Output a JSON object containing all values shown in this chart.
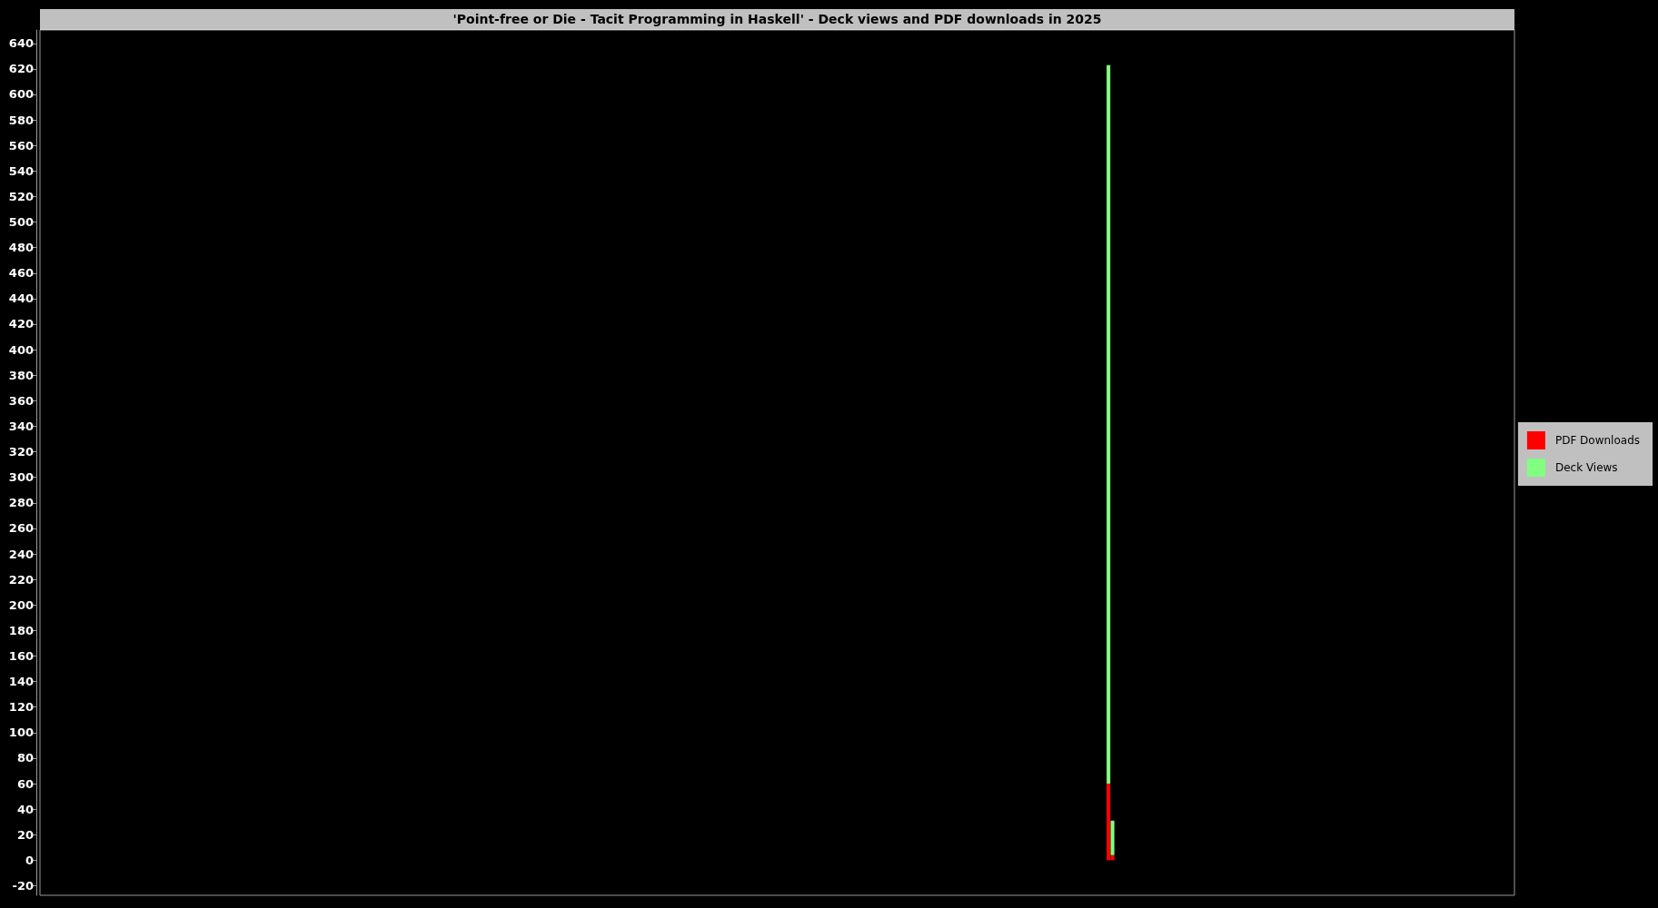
{
  "chart_data": {
    "type": "bar",
    "title": "'Point-free or Die - Tacit Programming in Haskell' - Deck views and PDF downloads in 2025",
    "categories": [
      null,
      null,
      null,
      null,
      null,
      null,
      null,
      null,
      null,
      null,
      null,
      null,
      null,
      null,
      null,
      null,
      null,
      null,
      null,
      null,
      null,
      null,
      null,
      null,
      null,
      null,
      null,
      null,
      null,
      null,
      null,
      null,
      null,
      null,
      null,
      null,
      null,
      null,
      null,
      null,
      null,
      null,
      null,
      null,
      null,
      null,
      null,
      null,
      null,
      null,
      null,
      null,
      null,
      null,
      null,
      null,
      null,
      null,
      null,
      null,
      null,
      null,
      null,
      null,
      null,
      null,
      null,
      null,
      null,
      null,
      null,
      null,
      null,
      null,
      null,
      null,
      null,
      null,
      null,
      null,
      null,
      null,
      null,
      null,
      null,
      null,
      null,
      null,
      null,
      null,
      null,
      null,
      null,
      null,
      null,
      null,
      null,
      null,
      null,
      null,
      null,
      null,
      null,
      null,
      null,
      null,
      null,
      null,
      null,
      null,
      null,
      null,
      null,
      null,
      null,
      null,
      null,
      null,
      null,
      null,
      null,
      null,
      null,
      null,
      null,
      null,
      null,
      null,
      null,
      null,
      null,
      null,
      null,
      null,
      null,
      null,
      null,
      null,
      null,
      null,
      null,
      null,
      null,
      null,
      null,
      null,
      null,
      null,
      null,
      null,
      null,
      null,
      null,
      null,
      null,
      null,
      null,
      null,
      null,
      null,
      null,
      null,
      null,
      null,
      null,
      null,
      null,
      null,
      null,
      null,
      null,
      null,
      null,
      null,
      null,
      null,
      null,
      null,
      null,
      null,
      null,
      null,
      null,
      null,
      null,
      null,
      null,
      null,
      null,
      null,
      null,
      null,
      null,
      null,
      null,
      null,
      null,
      null,
      null,
      null,
      null,
      null,
      null,
      null,
      null,
      null,
      null,
      null,
      null,
      null,
      null,
      null,
      null,
      null,
      null,
      null,
      null,
      null,
      null,
      null,
      null,
      null,
      null,
      null,
      null,
      null,
      null,
      null,
      null,
      null,
      null,
      null,
      null,
      null,
      null,
      null,
      null,
      null,
      null,
      null,
      null,
      null,
      null,
      null,
      null,
      null,
      null,
      null,
      null,
      null,
      null,
      null,
      null,
      null,
      null,
      null,
      null,
      null,
      null,
      null,
      null,
      null,
      null,
      null,
      null,
      null,
      null,
      null,
      null,
      null,
      null,
      null,
      null,
      null,
      null,
      null,
      null,
      null,
      null,
      null,
      null,
      null,
      null,
      null,
      null,
      null,
      null,
      null,
      null,
      null,
      null,
      null,
      null,
      null,
      null,
      null,
      null,
      null,
      null,
      null,
      null,
      null,
      null,
      null,
      null,
      null,
      null,
      null,
      null,
      null,
      null,
      null,
      null,
      null,
      null,
      null,
      null,
      null,
      null,
      null,
      null,
      null,
      null,
      null,
      null,
      null,
      null,
      null,
      null,
      null,
      null,
      null,
      null,
      null,
      null,
      null,
      null,
      null,
      null,
      null,
      null,
      null,
      null,
      null,
      null,
      null,
      null,
      null,
      null,
      null,
      null,
      null,
      null,
      null,
      null,
      null,
      null,
      null,
      null,
      null,
      null,
      null,
      null,
      null,
      null
    ],
    "series": [
      {
        "name": "PDF Downloads",
        "color": "#ff0000",
        "values": [
          null,
          null,
          null,
          null,
          null,
          null,
          null,
          null,
          null,
          null,
          null,
          null,
          null,
          null,
          null,
          null,
          null,
          null,
          null,
          null,
          null,
          null,
          null,
          null,
          null,
          null,
          null,
          null,
          null,
          null,
          null,
          null,
          null,
          null,
          null,
          null,
          null,
          null,
          null,
          null,
          null,
          null,
          null,
          null,
          null,
          null,
          null,
          null,
          null,
          null,
          null,
          null,
          null,
          null,
          null,
          null,
          null,
          null,
          null,
          null,
          null,
          null,
          null,
          null,
          null,
          null,
          null,
          null,
          null,
          null,
          null,
          null,
          null,
          null,
          null,
          null,
          null,
          null,
          null,
          null,
          null,
          null,
          null,
          null,
          null,
          null,
          null,
          null,
          null,
          null,
          null,
          null,
          null,
          null,
          null,
          null,
          null,
          null,
          null,
          null,
          null,
          null,
          null,
          null,
          null,
          null,
          null,
          null,
          null,
          null,
          null,
          null,
          null,
          null,
          null,
          null,
          null,
          null,
          null,
          null,
          null,
          null,
          null,
          null,
          null,
          null,
          null,
          null,
          null,
          null,
          null,
          null,
          null,
          null,
          null,
          null,
          null,
          null,
          null,
          null,
          null,
          null,
          null,
          null,
          null,
          null,
          null,
          null,
          null,
          null,
          null,
          null,
          null,
          null,
          null,
          null,
          null,
          null,
          null,
          null,
          null,
          null,
          null,
          null,
          null,
          null,
          null,
          null,
          null,
          null,
          null,
          null,
          null,
          null,
          null,
          null,
          null,
          null,
          null,
          null,
          null,
          null,
          null,
          null,
          null,
          null,
          null,
          null,
          null,
          null,
          null,
          null,
          null,
          null,
          null,
          null,
          null,
          null,
          null,
          null,
          null,
          null,
          null,
          null,
          null,
          null,
          null,
          null,
          null,
          null,
          null,
          null,
          null,
          null,
          null,
          null,
          null,
          null,
          null,
          null,
          null,
          null,
          null,
          null,
          null,
          null,
          null,
          null,
          null,
          null,
          null,
          null,
          null,
          null,
          null,
          null,
          null,
          null,
          null,
          null,
          null,
          null,
          null,
          null,
          null,
          null,
          null,
          null,
          null,
          null,
          null,
          null,
          null,
          null,
          null,
          null,
          null,
          null,
          null,
          null,
          null,
          null,
          null,
          null,
          60,
          4,
          null,
          null,
          null,
          null,
          null,
          null,
          null,
          null,
          null,
          null,
          null,
          null,
          null,
          null,
          null,
          null,
          null,
          null,
          null,
          null,
          null,
          null,
          null,
          null,
          null,
          null,
          null,
          null,
          null,
          null,
          null,
          null,
          null,
          null,
          null,
          null,
          null,
          null,
          null,
          null,
          null,
          null,
          null,
          null,
          null,
          null,
          null,
          null,
          null,
          null,
          null,
          null,
          null,
          null,
          null,
          null,
          null,
          null,
          null,
          null,
          null,
          null,
          null,
          null,
          null,
          null,
          null,
          null,
          null,
          null,
          null,
          null,
          null,
          null,
          null,
          null,
          null,
          null,
          null,
          null,
          null,
          null,
          null,
          null,
          null,
          null,
          null,
          null,
          null,
          null,
          null,
          null,
          null,
          null,
          null,
          null,
          null,
          null,
          null
        ]
      },
      {
        "name": "Deck Views",
        "color": "#80ff80",
        "values": [
          null,
          null,
          null,
          null,
          null,
          null,
          null,
          null,
          null,
          null,
          null,
          null,
          null,
          null,
          null,
          null,
          null,
          null,
          null,
          null,
          null,
          null,
          null,
          null,
          null,
          null,
          null,
          null,
          null,
          null,
          null,
          null,
          null,
          null,
          null,
          null,
          null,
          null,
          null,
          null,
          null,
          null,
          null,
          null,
          null,
          null,
          null,
          null,
          null,
          null,
          null,
          null,
          null,
          null,
          null,
          null,
          null,
          null,
          null,
          null,
          null,
          null,
          null,
          null,
          null,
          null,
          null,
          null,
          null,
          null,
          null,
          null,
          null,
          null,
          null,
          null,
          null,
          null,
          null,
          null,
          null,
          null,
          null,
          null,
          null,
          null,
          null,
          null,
          null,
          null,
          null,
          null,
          null,
          null,
          null,
          null,
          null,
          null,
          null,
          null,
          null,
          null,
          null,
          null,
          null,
          null,
          null,
          null,
          null,
          null,
          null,
          null,
          null,
          null,
          null,
          null,
          null,
          null,
          null,
          null,
          null,
          null,
          null,
          null,
          null,
          null,
          null,
          null,
          null,
          null,
          null,
          null,
          null,
          null,
          null,
          null,
          null,
          null,
          null,
          null,
          null,
          null,
          null,
          null,
          null,
          null,
          null,
          null,
          null,
          null,
          null,
          null,
          null,
          null,
          null,
          null,
          null,
          null,
          null,
          null,
          null,
          null,
          null,
          null,
          null,
          null,
          null,
          null,
          null,
          null,
          null,
          null,
          null,
          null,
          null,
          null,
          null,
          null,
          null,
          null,
          null,
          null,
          null,
          null,
          null,
          null,
          null,
          null,
          null,
          null,
          null,
          null,
          null,
          null,
          null,
          null,
          null,
          null,
          null,
          null,
          null,
          null,
          null,
          null,
          null,
          null,
          null,
          null,
          null,
          null,
          null,
          null,
          null,
          null,
          null,
          null,
          null,
          null,
          null,
          null,
          null,
          null,
          null,
          null,
          null,
          null,
          null,
          null,
          null,
          null,
          null,
          null,
          null,
          null,
          null,
          null,
          null,
          null,
          null,
          null,
          null,
          null,
          null,
          null,
          null,
          null,
          null,
          null,
          null,
          null,
          null,
          null,
          null,
          null,
          null,
          null,
          null,
          null,
          null,
          null,
          null,
          null,
          null,
          null,
          563,
          27,
          null,
          null,
          null,
          null,
          null,
          null,
          null,
          null,
          null,
          null,
          null,
          null,
          null,
          null,
          null,
          null,
          null,
          null,
          null,
          null,
          null,
          null,
          null,
          null,
          null,
          null,
          null,
          null,
          null,
          null,
          null,
          null,
          null,
          null,
          null,
          null,
          null,
          null,
          null,
          null,
          null,
          null,
          null,
          null,
          null,
          null,
          null,
          null,
          null,
          null,
          null,
          null,
          null,
          null,
          null,
          null,
          null,
          null,
          null,
          null,
          null,
          null,
          null,
          null,
          null,
          null,
          null,
          null,
          null,
          null,
          null,
          null,
          null,
          null,
          null,
          null,
          null,
          null,
          null,
          null,
          null,
          null,
          null,
          null,
          null,
          null,
          null,
          null,
          null,
          null,
          null,
          null,
          null,
          null,
          null,
          null,
          null,
          null,
          null
        ]
      }
    ],
    "stacked": true,
    "ylim": [
      -27.5,
      650.5
    ],
    "yticks": [
      -20,
      0,
      20,
      40,
      60,
      80,
      100,
      120,
      140,
      160,
      180,
      200,
      220,
      240,
      260,
      280,
      300,
      320,
      340,
      360,
      380,
      400,
      420,
      440,
      460,
      480,
      500,
      520,
      540,
      560,
      580,
      600,
      620,
      640
    ],
    "legend": "right",
    "tick_labels": "y"
  }
}
